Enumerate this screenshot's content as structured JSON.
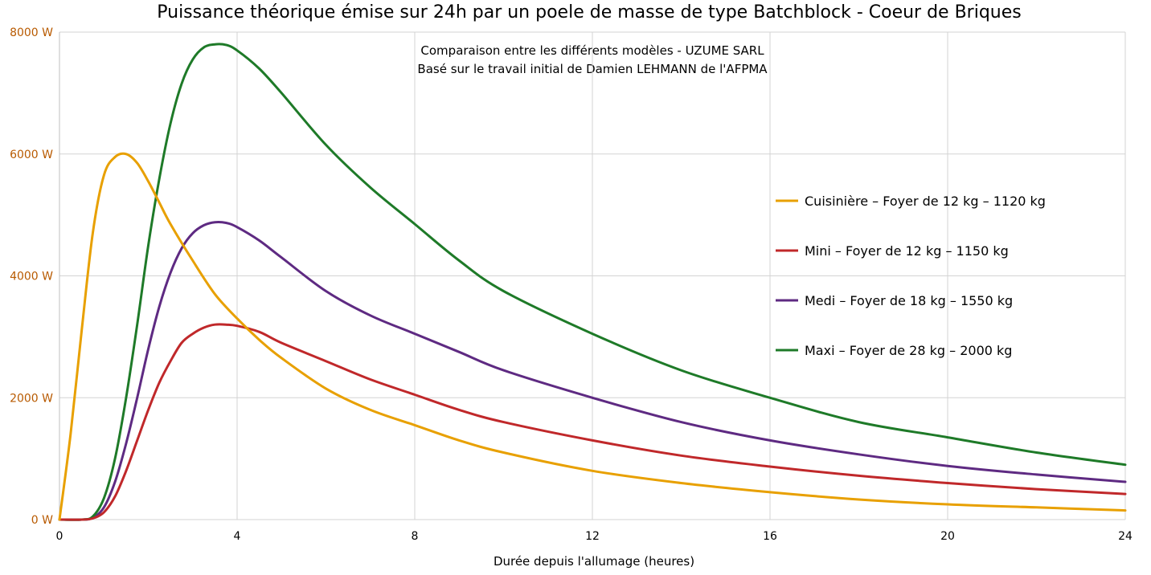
{
  "chart_data": {
    "type": "line",
    "title": "Puissance théorique émise sur 24h par un poele de masse de type Batchblock - Coeur de Briques",
    "subtitle_lines": [
      "Comparaison entre les différents modèles - UZUME SARL",
      "Basé sur le travail initial de Damien LEHMANN de l'AFPMA"
    ],
    "xlabel": "Durée depuis l'allumage (heures)",
    "ylabel": "",
    "xlim": [
      0,
      24
    ],
    "ylim": [
      0,
      8000
    ],
    "x_ticks": [
      0,
      4,
      8,
      12,
      16,
      20,
      24
    ],
    "y_ticks": [
      0,
      2000,
      4000,
      6000,
      8000
    ],
    "y_tick_labels": [
      "0 W",
      "2000 W",
      "4000 W",
      "6000 W",
      "8000 W"
    ],
    "grid": true,
    "legend_position": "right",
    "series": [
      {
        "name": "Cuisinière – Foyer de 12 kg – 1120 kg",
        "color": "#e8a000",
        "x": [
          0,
          0.25,
          0.5,
          0.75,
          1,
          1.25,
          1.5,
          1.75,
          2,
          2.25,
          2.5,
          3,
          3.5,
          4,
          4.5,
          5,
          6,
          7,
          8,
          9,
          10,
          12,
          14,
          16,
          18,
          20,
          22,
          24
        ],
        "y": [
          0,
          1400,
          3100,
          4700,
          5650,
          5950,
          6000,
          5850,
          5550,
          5200,
          4850,
          4250,
          3700,
          3300,
          2950,
          2650,
          2150,
          1800,
          1550,
          1300,
          1100,
          800,
          600,
          450,
          330,
          250,
          200,
          150
        ]
      },
      {
        "name": "Mini – Foyer de 12 kg – 1150 kg",
        "color": "#c0282a",
        "x": [
          0,
          0.5,
          0.75,
          1,
          1.25,
          1.5,
          1.75,
          2,
          2.25,
          2.5,
          2.75,
          3,
          3.25,
          3.5,
          3.75,
          4,
          4.5,
          5,
          6,
          7,
          8,
          9,
          10,
          12,
          14,
          16,
          18,
          20,
          22,
          24
        ],
        "y": [
          0,
          0,
          20,
          120,
          380,
          800,
          1300,
          1800,
          2250,
          2600,
          2900,
          3050,
          3150,
          3200,
          3200,
          3180,
          3080,
          2900,
          2600,
          2300,
          2050,
          1800,
          1600,
          1300,
          1050,
          870,
          720,
          600,
          500,
          420
        ]
      },
      {
        "name": "Medi – Foyer de 18 kg – 1550 kg",
        "color": "#5e2a82",
        "x": [
          0,
          0.5,
          0.75,
          1,
          1.25,
          1.5,
          1.75,
          2,
          2.25,
          2.5,
          2.75,
          3,
          3.25,
          3.5,
          3.75,
          4,
          4.5,
          5,
          6,
          7,
          8,
          9,
          10,
          12,
          14,
          16,
          18,
          20,
          22,
          24
        ],
        "y": [
          0,
          0,
          30,
          200,
          620,
          1250,
          2000,
          2800,
          3500,
          4050,
          4450,
          4700,
          4830,
          4880,
          4870,
          4800,
          4580,
          4300,
          3750,
          3350,
          3050,
          2750,
          2450,
          2000,
          1600,
          1300,
          1070,
          880,
          740,
          620
        ]
      },
      {
        "name": "Maxi – Foyer de 28 kg – 2000 kg",
        "color": "#1e7a28",
        "x": [
          0,
          0.5,
          0.75,
          1,
          1.25,
          1.5,
          1.75,
          2,
          2.25,
          2.5,
          2.75,
          3,
          3.25,
          3.5,
          3.75,
          4,
          4.5,
          5,
          6,
          7,
          8,
          9,
          10,
          12,
          14,
          16,
          18,
          20,
          22,
          24
        ],
        "y": [
          0,
          0,
          50,
          350,
          1000,
          2000,
          3200,
          4500,
          5600,
          6500,
          7150,
          7550,
          7750,
          7800,
          7790,
          7700,
          7400,
          7000,
          6150,
          5450,
          4850,
          4250,
          3750,
          3050,
          2450,
          2000,
          1600,
          1350,
          1100,
          900
        ]
      }
    ]
  }
}
